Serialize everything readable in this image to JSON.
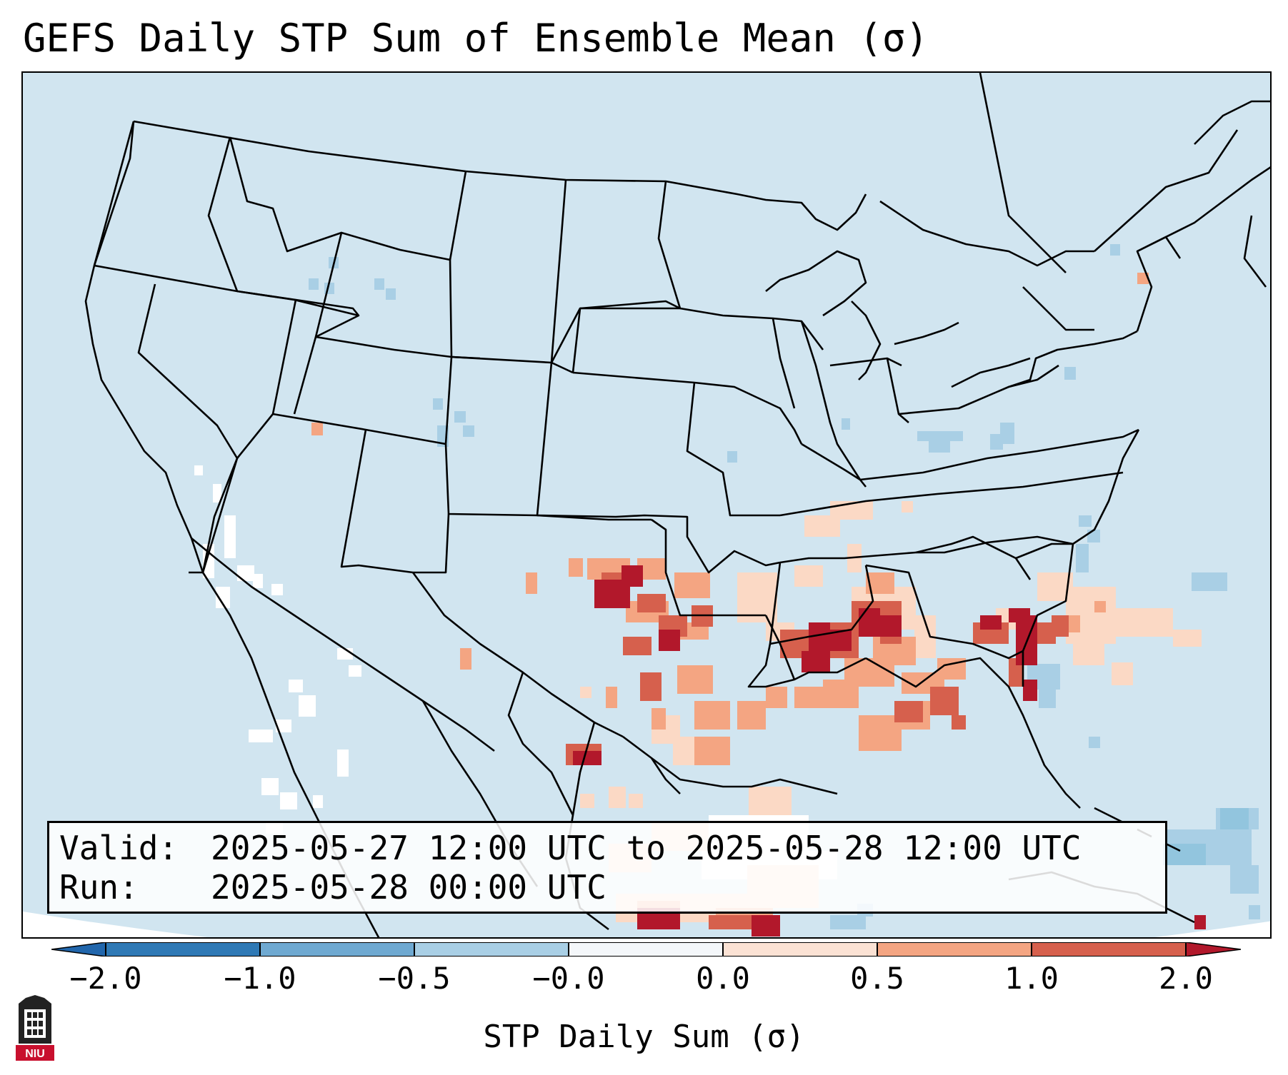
{
  "title": "GEFS Daily STP Sum of Ensemble Mean (σ)",
  "info": {
    "valid_label": "Valid:",
    "valid_value": "2025-05-27 12:00 UTC to 2025-05-28 12:00 UTC",
    "run_label": "Run:",
    "run_value": "2025-05-28 00:00 UTC"
  },
  "colorbar": {
    "label": "STP Daily Sum (σ)",
    "ticks": [
      "−2.0",
      "−1.0",
      "−0.5",
      "−0.0",
      "0.0",
      "0.5",
      "1.0",
      "2.0"
    ],
    "colors": [
      "#2f79b5",
      "#6fa9d1",
      "#a9cfe5",
      "#f4f7fa",
      "#fbe2d4",
      "#f4a582",
      "#d6604d",
      "#b2182b"
    ],
    "extend": "both"
  },
  "colors": {
    "ocean_land": "#d1e5f0",
    "outside_domain": "#ffffff",
    "boundary": "#000000"
  },
  "logo": {
    "text": "NIU"
  }
}
